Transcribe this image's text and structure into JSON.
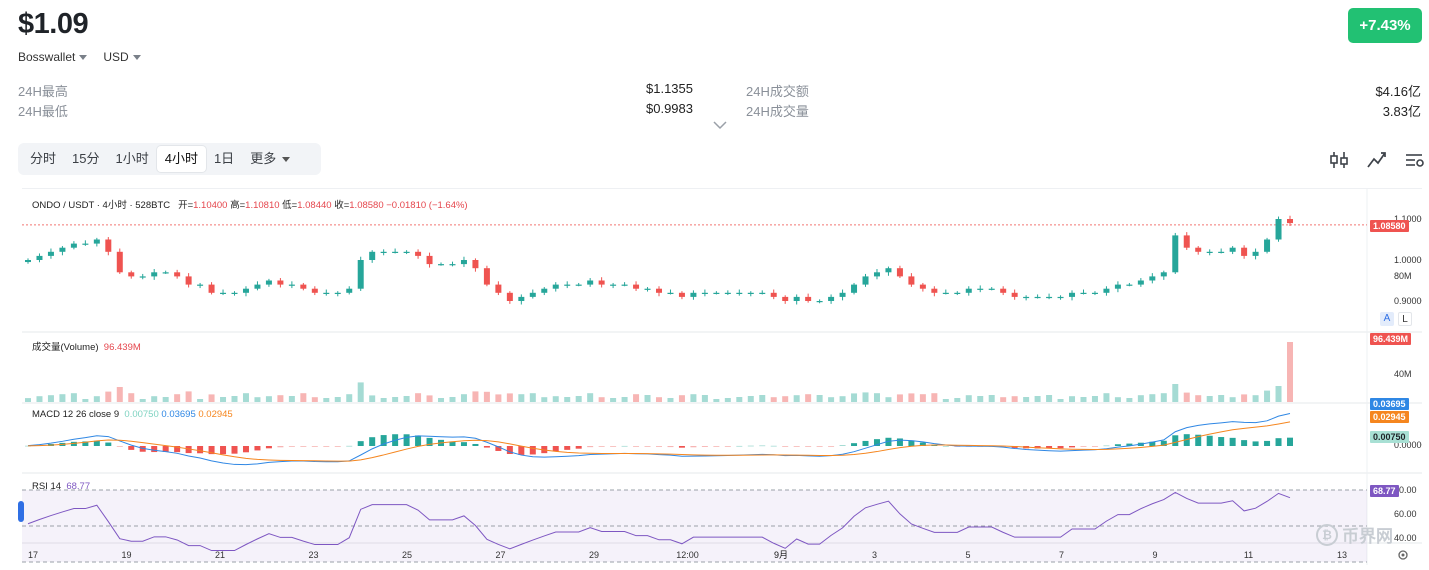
{
  "header": {
    "price": "$1.09",
    "change": "+7.43%",
    "exchange": "Bosswallet",
    "currency": "USD"
  },
  "stats": {
    "high_label": "24H最高",
    "high_value": "$1.1355",
    "low_label": "24H最低",
    "low_value": "$0.9983",
    "turnover_label": "24H成交额",
    "turnover_value": "$4.16亿",
    "volume_label": "24H成交量",
    "volume_value": "3.83亿"
  },
  "timeframes": [
    {
      "label": "分时"
    },
    {
      "label": "15分"
    },
    {
      "label": "1小时"
    },
    {
      "label": "4小时"
    },
    {
      "label": "1日"
    },
    {
      "label": "更多"
    }
  ],
  "chart": {
    "pair": "ONDO / USDT · 4小时 · 528BTC",
    "open_label": "开=",
    "open": "1.10400",
    "high_label": "高=",
    "high": "1.10810",
    "low_label": "低=",
    "low": "1.08440",
    "close_label": "收=",
    "close": "1.08580",
    "delta": "−0.01810 (−1.64%)",
    "volume_label": "成交量(Volume)",
    "volume_value": "96.439M",
    "macd_label": "MACD 12 26 close 9",
    "macd_hist": "0.00750",
    "macd_line": "0.03695",
    "macd_signal": "0.02945",
    "rsi_label": "RSI 14",
    "rsi_value": "68.77",
    "price_tag": "1.08580",
    "vol_tag": "96.439M",
    "macd_tag1": "0.03695",
    "macd_tag2": "0.02945",
    "macd_tag3": "0.00750",
    "rsi_tag": "68.77",
    "price_axis": [
      "1.10000",
      "1.00000",
      "0.90000"
    ],
    "vol_axis": [
      "80M",
      "40M"
    ],
    "macd_axis": [
      "0.00000"
    ],
    "rsi_axis": [
      "80.00",
      "60.00",
      "40.00"
    ],
    "x_axis": [
      "17",
      "19",
      "21",
      "23",
      "25",
      "27",
      "29",
      "12:00",
      "9月",
      "3",
      "5",
      "7",
      "9",
      "11",
      "13"
    ],
    "auto_label": "A",
    "log_label": "L"
  },
  "watermark": "币界网",
  "colors": {
    "up": "#26a69a",
    "down": "#ef5350",
    "accent": "#22c173",
    "rsi": "#7e57c2"
  },
  "icons": [
    "chevron-down-icon",
    "candles-icon",
    "indicator-icon",
    "settings-sliders-icon",
    "gear-icon"
  ],
  "chart_data": {
    "type": "candlestick",
    "series_closes": [
      1.0,
      1.01,
      1.02,
      1.03,
      1.04,
      1.04,
      1.05,
      1.02,
      0.97,
      0.96,
      0.96,
      0.97,
      0.97,
      0.96,
      0.94,
      0.94,
      0.92,
      0.92,
      0.92,
      0.93,
      0.94,
      0.95,
      0.94,
      0.94,
      0.93,
      0.92,
      0.92,
      0.92,
      0.93,
      1.0,
      1.02,
      1.02,
      1.02,
      1.02,
      1.01,
      0.99,
      0.99,
      0.99,
      1.0,
      0.98,
      0.94,
      0.92,
      0.9,
      0.91,
      0.92,
      0.93,
      0.94,
      0.94,
      0.94,
      0.95,
      0.94,
      0.94,
      0.94,
      0.93,
      0.93,
      0.92,
      0.92,
      0.91,
      0.92,
      0.92,
      0.92,
      0.92,
      0.92,
      0.92,
      0.92,
      0.91,
      0.9,
      0.91,
      0.9,
      0.9,
      0.91,
      0.92,
      0.94,
      0.96,
      0.97,
      0.98,
      0.96,
      0.94,
      0.93,
      0.92,
      0.92,
      0.92,
      0.93,
      0.93,
      0.93,
      0.92,
      0.91,
      0.91,
      0.91,
      0.91,
      0.91,
      0.92,
      0.92,
      0.92,
      0.93,
      0.94,
      0.94,
      0.95,
      0.96,
      0.97,
      1.06,
      1.03,
      1.02,
      1.02,
      1.02,
      1.03,
      1.01,
      1.02,
      1.05,
      1.1,
      1.09
    ]
  }
}
